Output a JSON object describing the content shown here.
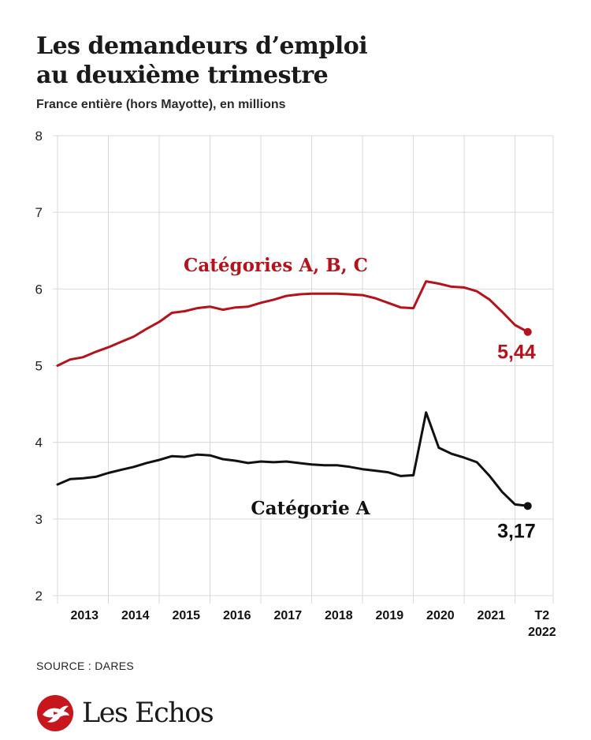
{
  "header": {
    "title_line1": "Les demandeurs d’emploi",
    "title_line2": "au deuxième trimestre",
    "subtitle": "France entière (hors Mayotte), en millions"
  },
  "chart_data": {
    "type": "line",
    "title": "Les demandeurs d’emploi au deuxième trimestre",
    "subtitle": "France entière (hors Mayotte), en millions",
    "xlabel": "",
    "ylabel": "",
    "ylim": [
      2,
      8
    ],
    "yticks": [
      2,
      3,
      4,
      5,
      6,
      7,
      8
    ],
    "xlim": [
      2012.5,
      2022.25
    ],
    "xticks": [
      {
        "label": "2013",
        "x": 2013.0
      },
      {
        "label": "2014",
        "x": 2014.0
      },
      {
        "label": "2015",
        "x": 2015.0
      },
      {
        "label": "2016",
        "x": 2016.0
      },
      {
        "label": "2017",
        "x": 2017.0
      },
      {
        "label": "2018",
        "x": 2018.0
      },
      {
        "label": "2019",
        "x": 2019.0
      },
      {
        "label": "2020",
        "x": 2020.0
      },
      {
        "label": "2021",
        "x": 2021.0
      },
      {
        "label": "T2\n2022",
        "x": 2022.0
      }
    ],
    "grid": true,
    "series": [
      {
        "name": "Catégories A, B, C",
        "color": "#b5121b",
        "end_label": "5,44",
        "points": [
          [
            2012.5,
            5.0
          ],
          [
            2012.75,
            5.08
          ],
          [
            2013.0,
            5.11
          ],
          [
            2013.25,
            5.18
          ],
          [
            2013.5,
            5.24
          ],
          [
            2013.75,
            5.31
          ],
          [
            2014.0,
            5.38
          ],
          [
            2014.25,
            5.48
          ],
          [
            2014.5,
            5.57
          ],
          [
            2014.75,
            5.69
          ],
          [
            2015.0,
            5.71
          ],
          [
            2015.25,
            5.75
          ],
          [
            2015.5,
            5.77
          ],
          [
            2015.75,
            5.73
          ],
          [
            2016.0,
            5.76
          ],
          [
            2016.25,
            5.77
          ],
          [
            2016.5,
            5.82
          ],
          [
            2016.75,
            5.86
          ],
          [
            2017.0,
            5.91
          ],
          [
            2017.25,
            5.93
          ],
          [
            2017.5,
            5.94
          ],
          [
            2017.75,
            5.94
          ],
          [
            2018.0,
            5.94
          ],
          [
            2018.25,
            5.93
          ],
          [
            2018.5,
            5.92
          ],
          [
            2018.75,
            5.88
          ],
          [
            2019.0,
            5.82
          ],
          [
            2019.25,
            5.76
          ],
          [
            2019.5,
            5.75
          ],
          [
            2019.75,
            6.1
          ],
          [
            2020.0,
            6.07
          ],
          [
            2020.25,
            6.03
          ],
          [
            2020.5,
            6.02
          ],
          [
            2020.75,
            5.97
          ],
          [
            2021.0,
            5.86
          ],
          [
            2021.25,
            5.7
          ],
          [
            2021.5,
            5.53
          ],
          [
            2021.75,
            5.44
          ]
        ]
      },
      {
        "name": "Catégorie A",
        "color": "#111111",
        "end_label": "3,17",
        "points": [
          [
            2012.5,
            3.45
          ],
          [
            2012.75,
            3.52
          ],
          [
            2013.0,
            3.53
          ],
          [
            2013.25,
            3.55
          ],
          [
            2013.5,
            3.6
          ],
          [
            2013.75,
            3.64
          ],
          [
            2014.0,
            3.68
          ],
          [
            2014.25,
            3.73
          ],
          [
            2014.5,
            3.77
          ],
          [
            2014.75,
            3.82
          ],
          [
            2015.0,
            3.81
          ],
          [
            2015.25,
            3.84
          ],
          [
            2015.5,
            3.83
          ],
          [
            2015.75,
            3.78
          ],
          [
            2016.0,
            3.76
          ],
          [
            2016.25,
            3.73
          ],
          [
            2016.5,
            3.75
          ],
          [
            2016.75,
            3.74
          ],
          [
            2017.0,
            3.75
          ],
          [
            2017.25,
            3.73
          ],
          [
            2017.5,
            3.71
          ],
          [
            2017.75,
            3.7
          ],
          [
            2018.0,
            3.7
          ],
          [
            2018.25,
            3.68
          ],
          [
            2018.5,
            3.65
          ],
          [
            2018.75,
            3.63
          ],
          [
            2019.0,
            3.61
          ],
          [
            2019.25,
            3.56
          ],
          [
            2019.5,
            3.57
          ],
          [
            2019.75,
            4.39
          ],
          [
            2020.0,
            3.93
          ],
          [
            2020.25,
            3.85
          ],
          [
            2020.5,
            3.8
          ],
          [
            2020.75,
            3.74
          ],
          [
            2021.0,
            3.56
          ],
          [
            2021.25,
            3.35
          ],
          [
            2021.5,
            3.19
          ],
          [
            2021.75,
            3.17
          ]
        ]
      }
    ]
  },
  "footer": {
    "source": "SOURCE : DARES",
    "logo_text": "Les Echos"
  },
  "colors": {
    "brand_red": "#b5121b",
    "text": "#1a1a1a",
    "grid": "#d9d9d9"
  }
}
